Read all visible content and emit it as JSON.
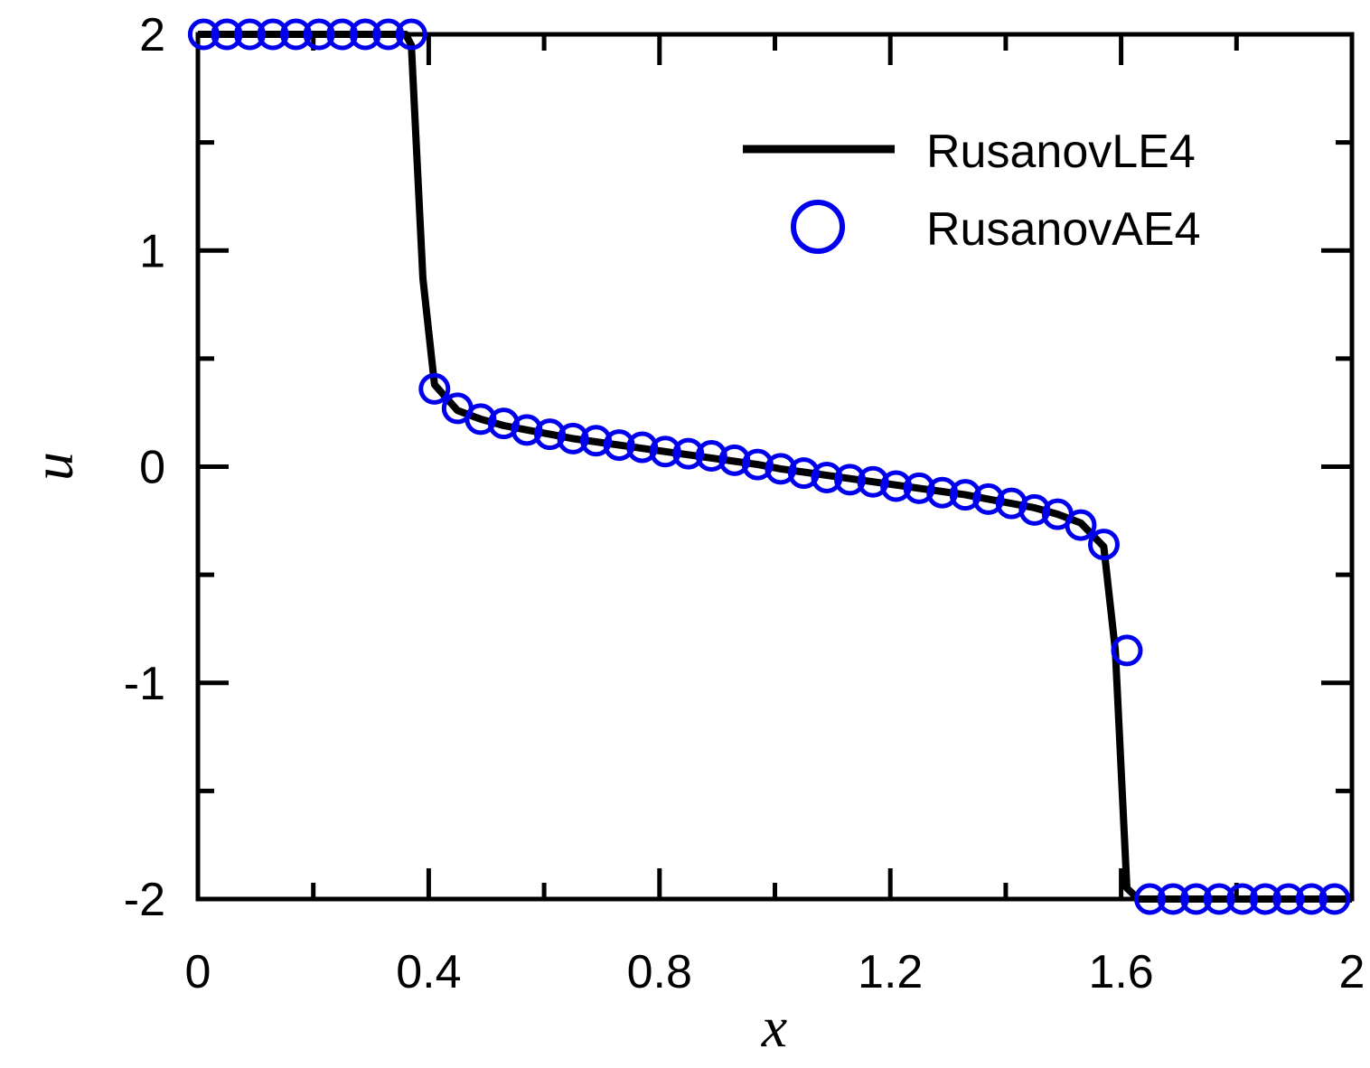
{
  "chart_data": {
    "type": "line",
    "xlabel": "x",
    "ylabel": "u",
    "xlim": [
      0,
      2
    ],
    "ylim": [
      -2,
      2
    ],
    "x_ticks": [
      0,
      0.4,
      0.8,
      1.2,
      1.6,
      2
    ],
    "x_tick_labels": [
      "0",
      "0.4",
      "0.8",
      "1.2",
      "1.6",
      "2"
    ],
    "x_minor_ticks": [
      0.2,
      0.6,
      1.0,
      1.4,
      1.8
    ],
    "y_ticks": [
      -2,
      -1,
      0,
      1,
      2
    ],
    "y_tick_labels": [
      "-2",
      "-1",
      "0",
      "1",
      "2"
    ],
    "y_minor_ticks": [
      -1.5,
      -0.5,
      0.5,
      1.5
    ],
    "grid": false,
    "legend_position": "top-right",
    "series": [
      {
        "name": "RusanovLE4",
        "style": "line",
        "color": "#000000",
        "x": [
          0,
          0.36,
          0.37,
          0.39,
          0.41,
          0.45,
          0.49,
          0.53,
          0.57,
          0.61,
          0.65,
          0.69,
          0.73,
          0.77,
          0.81,
          0.85,
          0.89,
          0.93,
          0.97,
          1.01,
          1.05,
          1.09,
          1.13,
          1.17,
          1.21,
          1.25,
          1.29,
          1.33,
          1.37,
          1.41,
          1.45,
          1.49,
          1.53,
          1.57,
          1.59,
          1.61,
          1.63,
          2.0
        ],
        "y": [
          2.0,
          2.0,
          1.95,
          0.87,
          0.38,
          0.26,
          0.22,
          0.19,
          0.17,
          0.15,
          0.13,
          0.115,
          0.1,
          0.085,
          0.07,
          0.055,
          0.04,
          0.025,
          0.01,
          -0.01,
          -0.025,
          -0.04,
          -0.055,
          -0.07,
          -0.085,
          -0.1,
          -0.115,
          -0.13,
          -0.15,
          -0.17,
          -0.19,
          -0.22,
          -0.26,
          -0.37,
          -0.85,
          -1.95,
          -2.0,
          -2.0
        ]
      },
      {
        "name": "RusanovAE4",
        "style": "marker",
        "marker": "open-circle",
        "color": "#0000ee",
        "x": [
          0.01,
          0.05,
          0.09,
          0.13,
          0.17,
          0.21,
          0.25,
          0.29,
          0.33,
          0.37,
          0.41,
          0.45,
          0.49,
          0.53,
          0.57,
          0.61,
          0.65,
          0.69,
          0.73,
          0.77,
          0.81,
          0.85,
          0.89,
          0.93,
          0.97,
          1.01,
          1.05,
          1.09,
          1.13,
          1.17,
          1.21,
          1.25,
          1.29,
          1.33,
          1.37,
          1.41,
          1.45,
          1.49,
          1.53,
          1.57,
          1.61,
          1.65,
          1.69,
          1.73,
          1.77,
          1.81,
          1.85,
          1.89,
          1.93,
          1.97
        ],
        "y": [
          2.0,
          2.0,
          2.0,
          2.0,
          2.0,
          2.0,
          2.0,
          2.0,
          2.0,
          2.0,
          0.36,
          0.27,
          0.22,
          0.2,
          0.17,
          0.15,
          0.13,
          0.12,
          0.1,
          0.09,
          0.07,
          0.06,
          0.05,
          0.03,
          0.01,
          -0.01,
          -0.03,
          -0.05,
          -0.06,
          -0.07,
          -0.09,
          -0.1,
          -0.12,
          -0.13,
          -0.15,
          -0.17,
          -0.2,
          -0.22,
          -0.27,
          -0.36,
          -0.85,
          -2.0,
          -2.0,
          -2.0,
          -2.0,
          -2.0,
          -2.0,
          -2.0,
          -2.0,
          -2.0
        ]
      }
    ]
  }
}
